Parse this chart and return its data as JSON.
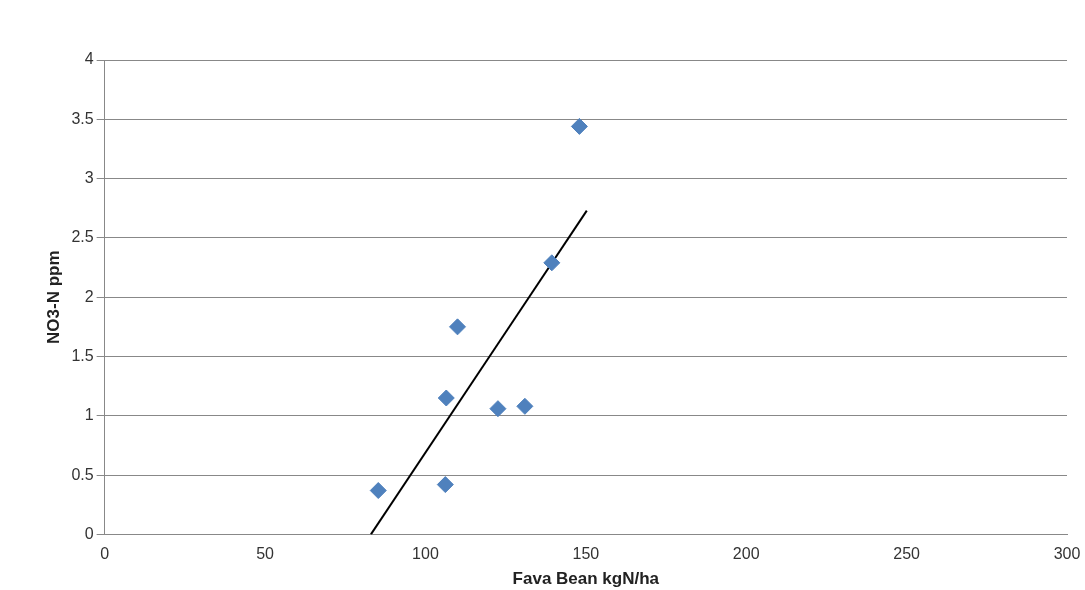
{
  "chart_data": {
    "type": "scatter",
    "xlabel": "Fava Bean kgN/ha",
    "ylabel": "NO3-N ppm",
    "xlim": [
      0,
      300
    ],
    "xticks": [
      0,
      50,
      100,
      150,
      200,
      250,
      300
    ],
    "ylim": [
      0,
      4
    ],
    "yticks": [
      0,
      0.5,
      1,
      1.5,
      2,
      2.5,
      3,
      3.5,
      4
    ],
    "grid": "y",
    "legend": false,
    "marker": "diamond",
    "series": [
      {
        "color": "#4f81bd",
        "x": [
          85.3,
          106.2,
          106.5,
          110,
          122.6,
          131,
          139.4,
          148
        ],
        "values": [
          0.37,
          0.42,
          1.15,
          1.75,
          1.06,
          1.08,
          2.29,
          3.44
        ]
      },
      {
        "type": "line",
        "color": "#000000",
        "marker": "none",
        "line_style": "solid",
        "x": [
          83,
          150.3
        ],
        "values": [
          0,
          2.73
        ]
      }
    ]
  }
}
